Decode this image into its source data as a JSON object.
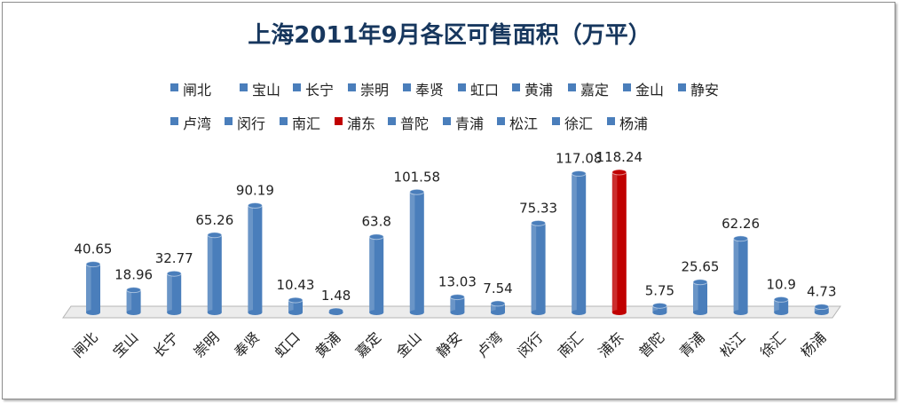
{
  "colors": {
    "bar": "#4a7ebb",
    "highlight": "#c00000",
    "title": "#17375e"
  },
  "chart_data": {
    "type": "bar",
    "title": "上海2011年9月各区可售面积（万平）",
    "xlabel": "",
    "ylabel": "",
    "ylim": [
      0,
      120
    ],
    "grid": false,
    "legend_position": "top",
    "categories": [
      "闸北",
      "宝山",
      "长宁",
      "崇明",
      "奉贤",
      "虹口",
      "黄浦",
      "嘉定",
      "金山",
      "静安",
      "卢湾",
      "闵行",
      "南汇",
      "浦东",
      "普陀",
      "青浦",
      "松江",
      "徐汇",
      "杨浦"
    ],
    "values": [
      40.65,
      18.96,
      32.77,
      65.26,
      90.19,
      10.43,
      1.48,
      63.8,
      101.58,
      13.03,
      7.54,
      75.33,
      117.08,
      118.24,
      5.75,
      25.65,
      62.26,
      10.9,
      4.73
    ],
    "value_labels": [
      "40.65",
      "18.96",
      "32.77",
      "65.26",
      "90.19",
      "10.43",
      "1.48",
      "63.8",
      "101.58",
      "13.03",
      "7.54",
      "75.33",
      "117.08",
      "118.24",
      "5.75",
      "25.65",
      "62.26",
      "10.9",
      "4.73"
    ],
    "highlight": "浦东"
  }
}
